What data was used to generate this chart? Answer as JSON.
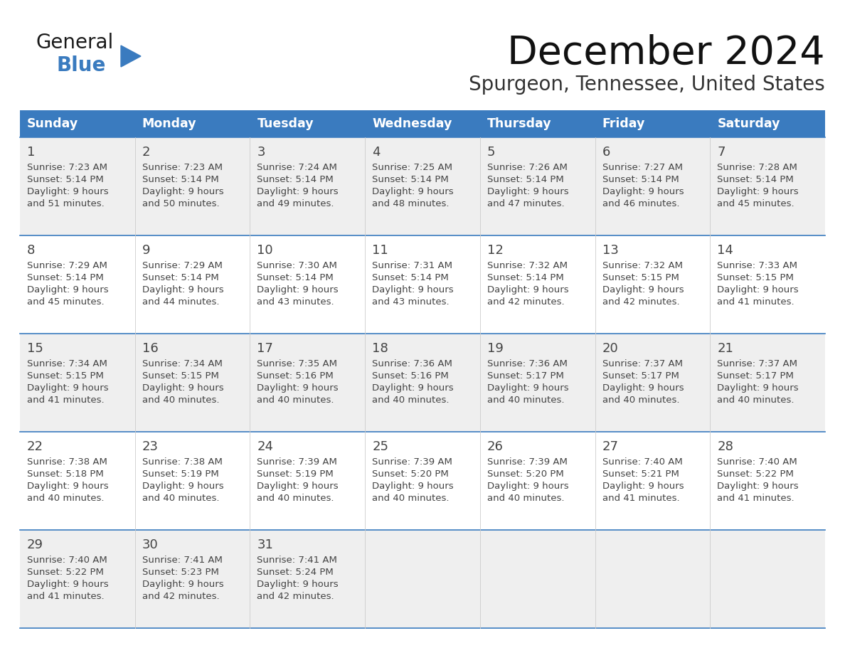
{
  "title": "December 2024",
  "subtitle": "Spurgeon, Tennessee, United States",
  "header_bg_color": "#3a7bbf",
  "header_text_color": "#ffffff",
  "grid_color": "#3a7bbf",
  "text_color": "#444444",
  "days_of_week": [
    "Sunday",
    "Monday",
    "Tuesday",
    "Wednesday",
    "Thursday",
    "Friday",
    "Saturday"
  ],
  "weeks": [
    [
      {
        "day": 1,
        "sunrise": "7:23 AM",
        "sunset": "5:14 PM",
        "daylight_hours": 9,
        "daylight_minutes": 51
      },
      {
        "day": 2,
        "sunrise": "7:23 AM",
        "sunset": "5:14 PM",
        "daylight_hours": 9,
        "daylight_minutes": 50
      },
      {
        "day": 3,
        "sunrise": "7:24 AM",
        "sunset": "5:14 PM",
        "daylight_hours": 9,
        "daylight_minutes": 49
      },
      {
        "day": 4,
        "sunrise": "7:25 AM",
        "sunset": "5:14 PM",
        "daylight_hours": 9,
        "daylight_minutes": 48
      },
      {
        "day": 5,
        "sunrise": "7:26 AM",
        "sunset": "5:14 PM",
        "daylight_hours": 9,
        "daylight_minutes": 47
      },
      {
        "day": 6,
        "sunrise": "7:27 AM",
        "sunset": "5:14 PM",
        "daylight_hours": 9,
        "daylight_minutes": 46
      },
      {
        "day": 7,
        "sunrise": "7:28 AM",
        "sunset": "5:14 PM",
        "daylight_hours": 9,
        "daylight_minutes": 45
      }
    ],
    [
      {
        "day": 8,
        "sunrise": "7:29 AM",
        "sunset": "5:14 PM",
        "daylight_hours": 9,
        "daylight_minutes": 45
      },
      {
        "day": 9,
        "sunrise": "7:29 AM",
        "sunset": "5:14 PM",
        "daylight_hours": 9,
        "daylight_minutes": 44
      },
      {
        "day": 10,
        "sunrise": "7:30 AM",
        "sunset": "5:14 PM",
        "daylight_hours": 9,
        "daylight_minutes": 43
      },
      {
        "day": 11,
        "sunrise": "7:31 AM",
        "sunset": "5:14 PM",
        "daylight_hours": 9,
        "daylight_minutes": 43
      },
      {
        "day": 12,
        "sunrise": "7:32 AM",
        "sunset": "5:14 PM",
        "daylight_hours": 9,
        "daylight_minutes": 42
      },
      {
        "day": 13,
        "sunrise": "7:32 AM",
        "sunset": "5:15 PM",
        "daylight_hours": 9,
        "daylight_minutes": 42
      },
      {
        "day": 14,
        "sunrise": "7:33 AM",
        "sunset": "5:15 PM",
        "daylight_hours": 9,
        "daylight_minutes": 41
      }
    ],
    [
      {
        "day": 15,
        "sunrise": "7:34 AM",
        "sunset": "5:15 PM",
        "daylight_hours": 9,
        "daylight_minutes": 41
      },
      {
        "day": 16,
        "sunrise": "7:34 AM",
        "sunset": "5:15 PM",
        "daylight_hours": 9,
        "daylight_minutes": 40
      },
      {
        "day": 17,
        "sunrise": "7:35 AM",
        "sunset": "5:16 PM",
        "daylight_hours": 9,
        "daylight_minutes": 40
      },
      {
        "day": 18,
        "sunrise": "7:36 AM",
        "sunset": "5:16 PM",
        "daylight_hours": 9,
        "daylight_minutes": 40
      },
      {
        "day": 19,
        "sunrise": "7:36 AM",
        "sunset": "5:17 PM",
        "daylight_hours": 9,
        "daylight_minutes": 40
      },
      {
        "day": 20,
        "sunrise": "7:37 AM",
        "sunset": "5:17 PM",
        "daylight_hours": 9,
        "daylight_minutes": 40
      },
      {
        "day": 21,
        "sunrise": "7:37 AM",
        "sunset": "5:17 PM",
        "daylight_hours": 9,
        "daylight_minutes": 40
      }
    ],
    [
      {
        "day": 22,
        "sunrise": "7:38 AM",
        "sunset": "5:18 PM",
        "daylight_hours": 9,
        "daylight_minutes": 40
      },
      {
        "day": 23,
        "sunrise": "7:38 AM",
        "sunset": "5:19 PM",
        "daylight_hours": 9,
        "daylight_minutes": 40
      },
      {
        "day": 24,
        "sunrise": "7:39 AM",
        "sunset": "5:19 PM",
        "daylight_hours": 9,
        "daylight_minutes": 40
      },
      {
        "day": 25,
        "sunrise": "7:39 AM",
        "sunset": "5:20 PM",
        "daylight_hours": 9,
        "daylight_minutes": 40
      },
      {
        "day": 26,
        "sunrise": "7:39 AM",
        "sunset": "5:20 PM",
        "daylight_hours": 9,
        "daylight_minutes": 40
      },
      {
        "day": 27,
        "sunrise": "7:40 AM",
        "sunset": "5:21 PM",
        "daylight_hours": 9,
        "daylight_minutes": 41
      },
      {
        "day": 28,
        "sunrise": "7:40 AM",
        "sunset": "5:22 PM",
        "daylight_hours": 9,
        "daylight_minutes": 41
      }
    ],
    [
      {
        "day": 29,
        "sunrise": "7:40 AM",
        "sunset": "5:22 PM",
        "daylight_hours": 9,
        "daylight_minutes": 41
      },
      {
        "day": 30,
        "sunrise": "7:41 AM",
        "sunset": "5:23 PM",
        "daylight_hours": 9,
        "daylight_minutes": 42
      },
      {
        "day": 31,
        "sunrise": "7:41 AM",
        "sunset": "5:24 PM",
        "daylight_hours": 9,
        "daylight_minutes": 42
      },
      null,
      null,
      null,
      null
    ]
  ],
  "logo_triangle_color": "#3a7bbf",
  "logo_blue_color": "#3a7bbf"
}
